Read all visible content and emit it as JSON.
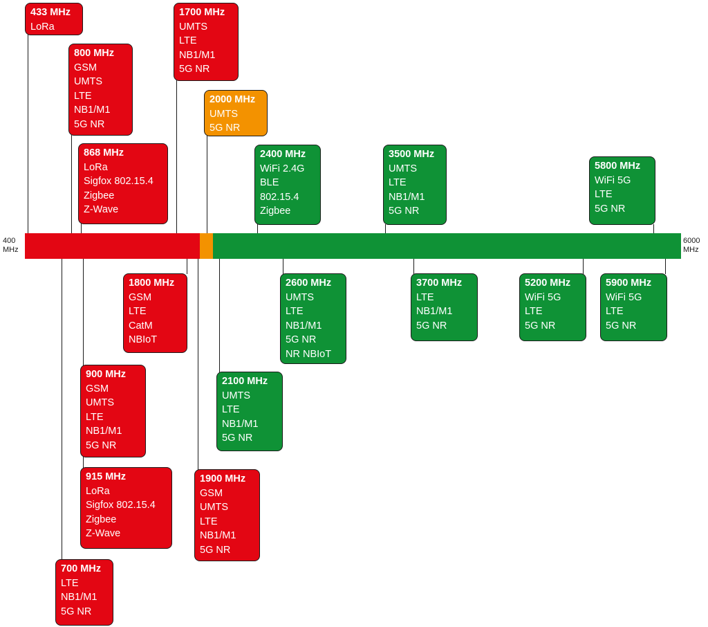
{
  "axis": {
    "start": {
      "value": "400",
      "unit": "MHz"
    },
    "end": {
      "value": "6000",
      "unit": "MHz"
    }
  },
  "colors": {
    "red": "#e30613",
    "orange": "#f39200",
    "green": "#0f9236"
  },
  "bands": [
    {
      "title": "433 MHz",
      "items": [
        "LoRa"
      ]
    },
    {
      "title": "800 MHz",
      "items": [
        "GSM",
        "UMTS",
        "LTE",
        "NB1/M1",
        "5G NR"
      ]
    },
    {
      "title": "868 MHz",
      "items": [
        "LoRa",
        "Sigfox 802.15.4",
        "Zigbee",
        "Z-Wave"
      ]
    },
    {
      "title": "1700 MHz",
      "items": [
        "UMTS",
        "LTE",
        "NB1/M1",
        "5G NR"
      ]
    },
    {
      "title": "2000 MHz",
      "items": [
        "UMTS",
        "5G NR"
      ]
    },
    {
      "title": "2400 MHz",
      "items": [
        "WiFi 2.4G",
        "BLE",
        "802.15.4",
        "Zigbee"
      ]
    },
    {
      "title": "3500 MHz",
      "items": [
        "UMTS",
        "LTE",
        "NB1/M1",
        "5G NR"
      ]
    },
    {
      "title": "5800 MHz",
      "items": [
        "WiFi 5G",
        "LTE",
        "5G NR"
      ]
    },
    {
      "title": "1800 MHz",
      "items": [
        "GSM",
        "LTE",
        "CatM",
        "NBIoT"
      ]
    },
    {
      "title": "2600 MHz",
      "items": [
        "UMTS",
        "LTE",
        "NB1/M1",
        "5G NR",
        "NR NBIoT"
      ]
    },
    {
      "title": "3700 MHz",
      "items": [
        "LTE",
        "NB1/M1",
        "5G NR"
      ]
    },
    {
      "title": "5200 MHz",
      "items": [
        "WiFi 5G",
        "LTE",
        "5G NR"
      ]
    },
    {
      "title": "5900 MHz",
      "items": [
        "WiFi 5G",
        "LTE",
        "5G NR"
      ]
    },
    {
      "title": "900 MHz",
      "items": [
        "GSM",
        "UMTS",
        "LTE",
        "NB1/M1",
        "5G NR"
      ]
    },
    {
      "title": "2100 MHz",
      "items": [
        "UMTS",
        "LTE",
        "NB1/M1",
        "5G NR"
      ]
    },
    {
      "title": "915 MHz",
      "items": [
        "LoRa",
        "Sigfox 802.15.4",
        "Zigbee",
        "Z-Wave"
      ]
    },
    {
      "title": "1900 MHz",
      "items": [
        "GSM",
        "UMTS",
        "LTE",
        "NB1/M1",
        "5G NR"
      ]
    },
    {
      "title": "700 MHz",
      "items": [
        "LTE",
        "NB1/M1",
        "5G NR"
      ]
    }
  ]
}
